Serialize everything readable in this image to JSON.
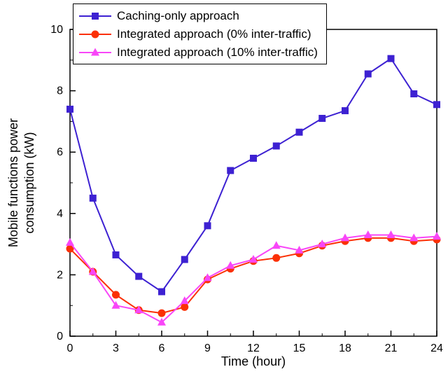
{
  "chart_data": {
    "type": "line",
    "title": "",
    "xlabel": "Time (hour)",
    "ylabel_line1": "Mobile functions power",
    "ylabel_line2": "consumption (kW)",
    "xlim": [
      0,
      24
    ],
    "ylim": [
      0,
      10
    ],
    "xticks": [
      0,
      3,
      6,
      9,
      12,
      15,
      18,
      21,
      24
    ],
    "yticks": [
      0,
      2,
      4,
      6,
      8,
      10
    ],
    "x_minor_step": 1.5,
    "y_minor_step": 1,
    "grid": false,
    "legend_position": "top-left-inside",
    "axis_color": "#000000",
    "x": [
      0,
      1.5,
      3,
      4.5,
      6,
      7.5,
      9,
      10.5,
      12,
      13.5,
      15,
      16.5,
      18,
      19.5,
      21,
      22.5,
      24
    ],
    "series": [
      {
        "name": "Caching-only approach",
        "color": "#3d21d2",
        "marker": "square",
        "values": [
          7.4,
          4.5,
          2.65,
          1.95,
          1.45,
          2.5,
          3.6,
          5.4,
          5.8,
          6.2,
          6.65,
          7.1,
          7.35,
          8.55,
          9.05,
          7.9,
          7.55
        ]
      },
      {
        "name": "Integrated approach (0% inter-traffic)",
        "color": "#fb3005",
        "marker": "circle",
        "values": [
          2.85,
          2.1,
          1.35,
          0.85,
          0.75,
          0.95,
          1.85,
          2.2,
          2.45,
          2.55,
          2.7,
          2.95,
          3.1,
          3.2,
          3.2,
          3.1,
          3.15
        ]
      },
      {
        "name": "Integrated approach (10% inter-traffic)",
        "color": "#f846f8",
        "marker": "triangle",
        "values": [
          3.05,
          2.1,
          1.0,
          0.85,
          0.45,
          1.15,
          1.9,
          2.3,
          2.5,
          2.95,
          2.8,
          3.0,
          3.2,
          3.3,
          3.3,
          3.2,
          3.25
        ]
      }
    ]
  }
}
